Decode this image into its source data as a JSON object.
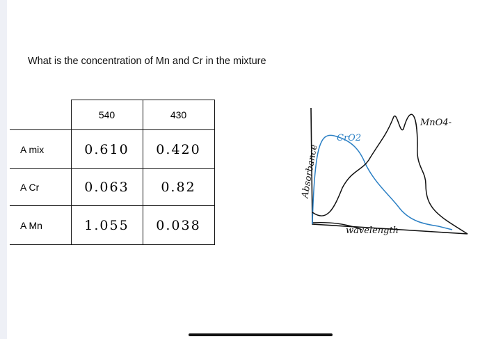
{
  "question": "What is the concentration of Mn and Cr in the mixture",
  "table": {
    "header": [
      "540",
      "430"
    ],
    "rows": [
      [
        "A mix",
        "0.610",
        "0.420"
      ],
      [
        "A Cr",
        "0.063",
        "0.82"
      ],
      [
        "A Mn",
        "1.055",
        "0.038"
      ]
    ]
  },
  "sketch": {
    "y_label": "Absorbance",
    "x_label": "wavelength",
    "curve_1_label": "CrO2",
    "curve_2_label": "MnO4-"
  }
}
